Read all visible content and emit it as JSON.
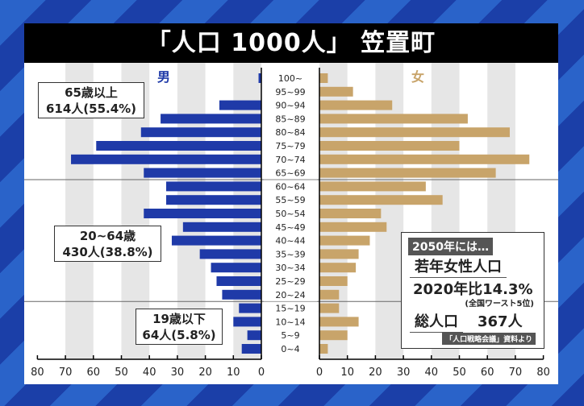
{
  "title": "「人口 1000人」 笠置町",
  "colors": {
    "male": "#1f3aa8",
    "female": "#c8a46a",
    "stripe": "#e6e6e6",
    "background": "#2a63c9"
  },
  "chart_data": {
    "type": "bar",
    "orientation": "horizontal",
    "subtype": "population-pyramid",
    "categories": [
      "100~",
      "95~99",
      "90~94",
      "85~89",
      "80~84",
      "75~79",
      "70~74",
      "65~69",
      "60~64",
      "55~59",
      "50~54",
      "45~49",
      "40~44",
      "35~39",
      "30~34",
      "25~29",
      "20~24",
      "15~19",
      "10~14",
      "5~9",
      "0~4"
    ],
    "series": [
      {
        "name": "男",
        "values": [
          1,
          0,
          15,
          36,
          43,
          59,
          68,
          42,
          34,
          34,
          42,
          28,
          32,
          22,
          18,
          16,
          14,
          8,
          10,
          5,
          7
        ]
      },
      {
        "name": "女",
        "values": [
          3,
          12,
          26,
          53,
          68,
          50,
          75,
          63,
          38,
          44,
          22,
          24,
          18,
          14,
          13,
          10,
          7,
          7,
          14,
          10,
          3
        ]
      }
    ],
    "xlim": [
      0,
      80
    ],
    "xticks": [
      0,
      10,
      20,
      30,
      40,
      50,
      60,
      70,
      80
    ],
    "grid": "alternating vertical bands"
  },
  "groups": [
    {
      "label": "65歳以上",
      "value": "614人(55.4%)"
    },
    {
      "label": "20~64歳",
      "value": "430人(38.8%)"
    },
    {
      "label": "19歳以下",
      "value": "64人(5.8%)"
    }
  ],
  "info": {
    "tag": "2050年には…",
    "heading": "若年女性人口",
    "rate": "2020年比14.3%",
    "rank": "(全国ワースト5位)",
    "total_label": "総人口",
    "total_value": "367人",
    "source": "「人口戦略会議」資料より"
  }
}
